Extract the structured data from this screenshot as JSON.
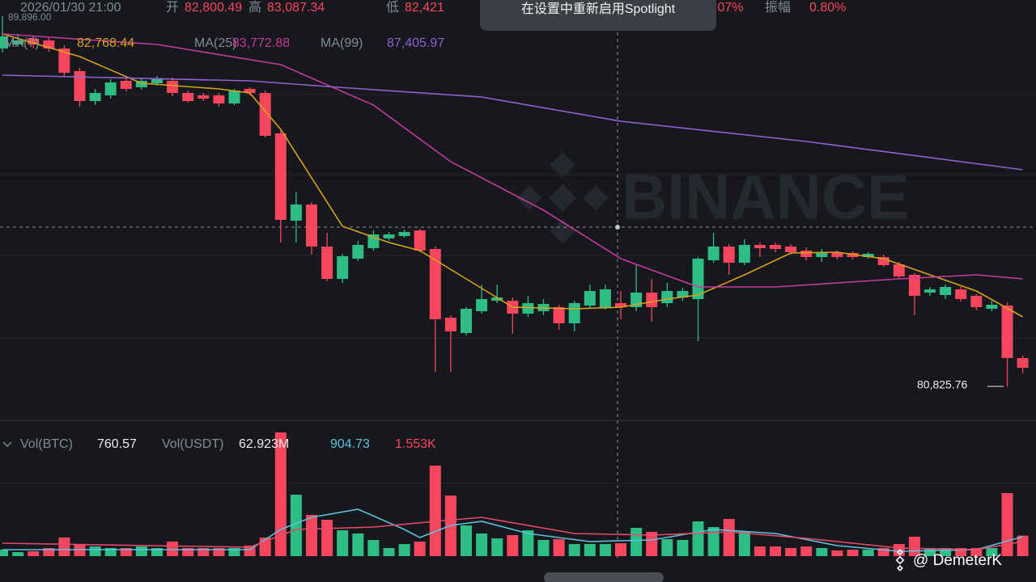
{
  "header": {
    "datetime": "2026/01/30 21:00",
    "open_label": "开",
    "open": "82,800.49",
    "high_label": "高",
    "high": "83,087.34",
    "low_label": "低",
    "low": "82,421",
    "change": ".07%",
    "amplitude_label": "振幅",
    "amplitude": "0.80%"
  },
  "toast": "在设置中重新启用Spotlight",
  "legend": {
    "ma7_value": "82,768.44",
    "ma25_value": "83,772.88",
    "ma99_value": "87,405.97"
  },
  "volume_legend": {
    "btc_label": "Vol(BTC)",
    "btc": "760.57",
    "usdt_label": "Vol(USDT)",
    "usdt": "62.923M",
    "ma1": "904.73",
    "ma2": "1.553K"
  },
  "watermark": "BINANCE",
  "credit": "@ DemeterK",
  "chart_data": {
    "type": "candlestick",
    "high_marker": "89,896.00",
    "low_marker": "80,825.76",
    "up_color": "#2ebd85",
    "down_color": "#f6465d",
    "ylim": [
      79996,
      90292
    ],
    "candles": [
      [
        89104,
        89896,
        89005,
        89401
      ],
      [
        89203,
        89460,
        89144,
        89302
      ],
      [
        89342,
        89421,
        89104,
        89203
      ],
      [
        89302,
        89381,
        89025,
        89104
      ],
      [
        89104,
        89183,
        88431,
        88510
      ],
      [
        88550,
        88629,
        87678,
        87817
      ],
      [
        87817,
        88114,
        87718,
        88015
      ],
      [
        87956,
        88352,
        87876,
        88272
      ],
      [
        88312,
        88391,
        88055,
        88114
      ],
      [
        88154,
        88391,
        88094,
        88312
      ],
      [
        88253,
        88431,
        88193,
        88352
      ],
      [
        88312,
        88391,
        87936,
        88015
      ],
      [
        88015,
        88074,
        87777,
        87817
      ],
      [
        87956,
        88015,
        87817,
        87876
      ],
      [
        87956,
        88015,
        87678,
        87758
      ],
      [
        87758,
        88114,
        87718,
        88074
      ],
      [
        88114,
        88154,
        87956,
        88015
      ],
      [
        88015,
        88074,
        86926,
        86966
      ],
      [
        87025,
        87084,
        84352,
        84906
      ],
      [
        84887,
        85580,
        84352,
        85283
      ],
      [
        85283,
        85342,
        84055,
        84253
      ],
      [
        84253,
        84590,
        83402,
        83461
      ],
      [
        83461,
        84075,
        83362,
        84015
      ],
      [
        83956,
        84392,
        83897,
        84293
      ],
      [
        84213,
        84649,
        84154,
        84550
      ],
      [
        84451,
        84609,
        84392,
        84550
      ],
      [
        84510,
        84669,
        84471,
        84609
      ],
      [
        84649,
        84689,
        84114,
        84154
      ],
      [
        84194,
        84253,
        81184,
        82471
      ],
      [
        82511,
        82570,
        81184,
        82174
      ],
      [
        82134,
        82768,
        82075,
        82728
      ],
      [
        82669,
        83322,
        82610,
        82966
      ],
      [
        82926,
        83322,
        82867,
        83006
      ],
      [
        82926,
        83006,
        82115,
        82610
      ],
      [
        82610,
        83045,
        82530,
        82867
      ],
      [
        82669,
        82966,
        82570,
        82847
      ],
      [
        82768,
        82827,
        82214,
        82372
      ],
      [
        82372,
        82926,
        82174,
        82867
      ],
      [
        82808,
        83322,
        82728,
        83164
      ],
      [
        82768,
        83322,
        82709,
        83204
      ],
      [
        82867,
        83164,
        82471,
        82768
      ],
      [
        82768,
        83798,
        82669,
        83124
      ],
      [
        83124,
        83461,
        82412,
        82768
      ],
      [
        82867,
        83362,
        82768,
        83164
      ],
      [
        83006,
        83243,
        82926,
        83164
      ],
      [
        82966,
        83996,
        81936,
        83956
      ],
      [
        83916,
        84590,
        83857,
        84253
      ],
      [
        84253,
        84312,
        83560,
        83857
      ],
      [
        83857,
        84431,
        83798,
        84293
      ],
      [
        84293,
        84352,
        83996,
        84213
      ],
      [
        84293,
        84352,
        84114,
        84194
      ],
      [
        84253,
        84312,
        84055,
        84114
      ],
      [
        84154,
        84233,
        83916,
        83996
      ],
      [
        83996,
        84194,
        83877,
        84114
      ],
      [
        84095,
        84154,
        83936,
        83996
      ],
      [
        84095,
        84134,
        83936,
        83996
      ],
      [
        83996,
        84114,
        83956,
        84075
      ],
      [
        83996,
        84055,
        83758,
        83798
      ],
      [
        83817,
        83877,
        83461,
        83520
      ],
      [
        83560,
        83600,
        82570,
        83045
      ],
      [
        83124,
        83263,
        83045,
        83204
      ],
      [
        83065,
        83322,
        82966,
        83263
      ],
      [
        83204,
        83263,
        82907,
        82966
      ],
      [
        83045,
        83085,
        82689,
        82768
      ],
      [
        82728,
        82926,
        82669,
        82827
      ],
      [
        82808,
        82887,
        80825.76,
        81521
      ],
      [
        81521,
        81580,
        81144,
        81283
      ]
    ],
    "series": [
      {
        "name": "MA(7)",
        "color": "#d9a21c",
        "x": [
          0,
          5,
          9,
          14,
          16,
          18,
          20,
          22,
          25,
          27,
          30,
          33,
          37,
          40,
          43,
          45,
          48,
          51,
          54,
          57,
          60,
          63,
          66
        ],
        "values": [
          89460,
          88906,
          88253,
          88114,
          88015,
          87124,
          85936,
          84748,
          84352,
          84154,
          83461,
          82768,
          82728,
          82768,
          82966,
          83065,
          83560,
          84095,
          84114,
          83956,
          83560,
          83164,
          82530
        ]
      },
      {
        "name": "MA(25)",
        "color": "#c43b9c",
        "x": [
          0,
          10,
          18,
          24,
          29,
          35,
          40,
          45,
          50,
          58,
          63,
          66
        ],
        "values": [
          89460,
          89203,
          88708,
          87718,
          86332,
          85144,
          83956,
          83263,
          83263,
          83461,
          83560,
          83461
        ]
      },
      {
        "name": "MA(99)",
        "color": "#8e63d2",
        "x": [
          0,
          16,
          21,
          31,
          40,
          52,
          66
        ],
        "values": [
          88451,
          88312,
          88173,
          87916,
          87322,
          86827,
          86134
        ]
      }
    ],
    "volume": {
      "ylim": [
        0,
        5190
      ],
      "values": [
        240,
        150,
        180,
        300,
        690,
        450,
        360,
        300,
        300,
        360,
        300,
        540,
        300,
        300,
        300,
        300,
        390,
        690,
        4590,
        2280,
        1530,
        1350,
        960,
        840,
        600,
        300,
        450,
        540,
        3360,
        2250,
        1140,
        840,
        660,
        780,
        960,
        600,
        630,
        450,
        450,
        450,
        480,
        1050,
        900,
        630,
        600,
        1290,
        1080,
        1380,
        900,
        360,
        360,
        300,
        360,
        300,
        210,
        240,
        240,
        300,
        450,
        720,
        300,
        300,
        300,
        300,
        300,
        2340,
        760.57
      ],
      "series": [
        {
          "color": "#5cc3de",
          "x": [
            0,
            16,
            18,
            20,
            23,
            26,
            27,
            29,
            31,
            34,
            38,
            42,
            46,
            50,
            54,
            58,
            63,
            66
          ],
          "values": [
            240,
            240,
            990,
            1440,
            1740,
            990,
            690,
            1140,
            1290,
            840,
            540,
            600,
            990,
            840,
            390,
            180,
            240,
            720
          ]
        },
        {
          "color": "#e8496b",
          "x": [
            0,
            16,
            19,
            24,
            28,
            31,
            37,
            42,
            47,
            52,
            58,
            63,
            66
          ],
          "values": [
            480,
            330,
            990,
            1080,
            1290,
            1440,
            840,
            780,
            900,
            660,
            300,
            240,
            540
          ]
        }
      ]
    }
  }
}
